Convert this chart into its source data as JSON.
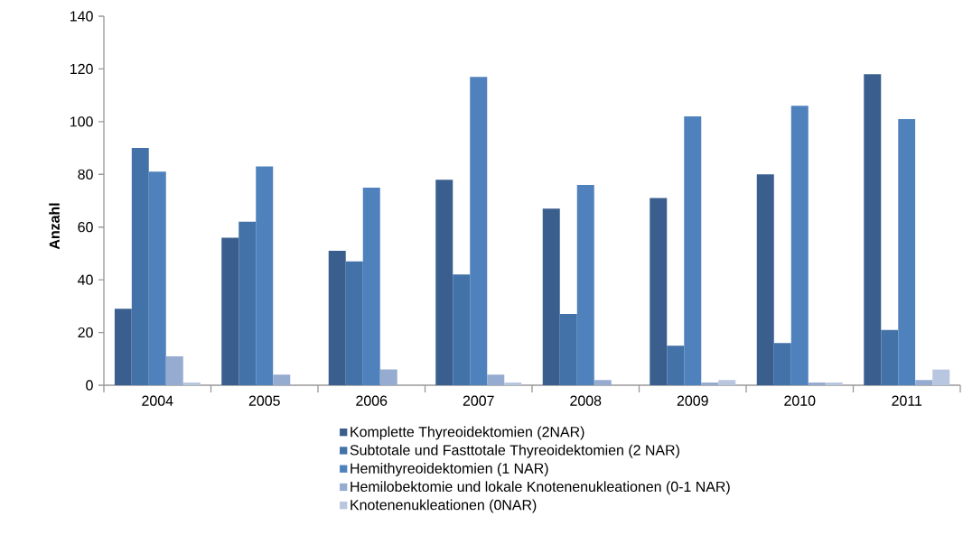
{
  "chart_data": {
    "type": "bar",
    "ylabel": "Anzahl",
    "categories": [
      "2004",
      "2005",
      "2006",
      "2007",
      "2008",
      "2009",
      "2010",
      "2011"
    ],
    "series": [
      {
        "name": "Komplette Thyreoidektomien (2NAR)",
        "color": "#3a5f8f",
        "values": [
          29,
          56,
          51,
          78,
          67,
          71,
          80,
          118
        ]
      },
      {
        "name": "Subtotale und Fasttotale Thyreoidektomien (2 NAR)",
        "color": "#4272a8",
        "values": [
          90,
          62,
          47,
          42,
          27,
          15,
          16,
          21
        ]
      },
      {
        "name": "Hemithyreoidektomien (1 NAR)",
        "color": "#4f81bd",
        "values": [
          81,
          83,
          75,
          117,
          76,
          102,
          106,
          101
        ]
      },
      {
        "name": "Hemilobektomie und lokale Knotenenukleationen (0-1 NAR)",
        "color": "#95abd0",
        "values": [
          11,
          4,
          6,
          4,
          2,
          1,
          1,
          2
        ]
      },
      {
        "name": "Knotenenukleationen (0NAR)",
        "color": "#b9c6e0",
        "values": [
          1,
          0,
          0,
          1,
          0,
          2,
          1,
          6
        ]
      }
    ],
    "ylim": [
      0,
      140
    ],
    "yticks": [
      0,
      20,
      40,
      60,
      80,
      100,
      120,
      140
    ],
    "legend": "bottom"
  }
}
